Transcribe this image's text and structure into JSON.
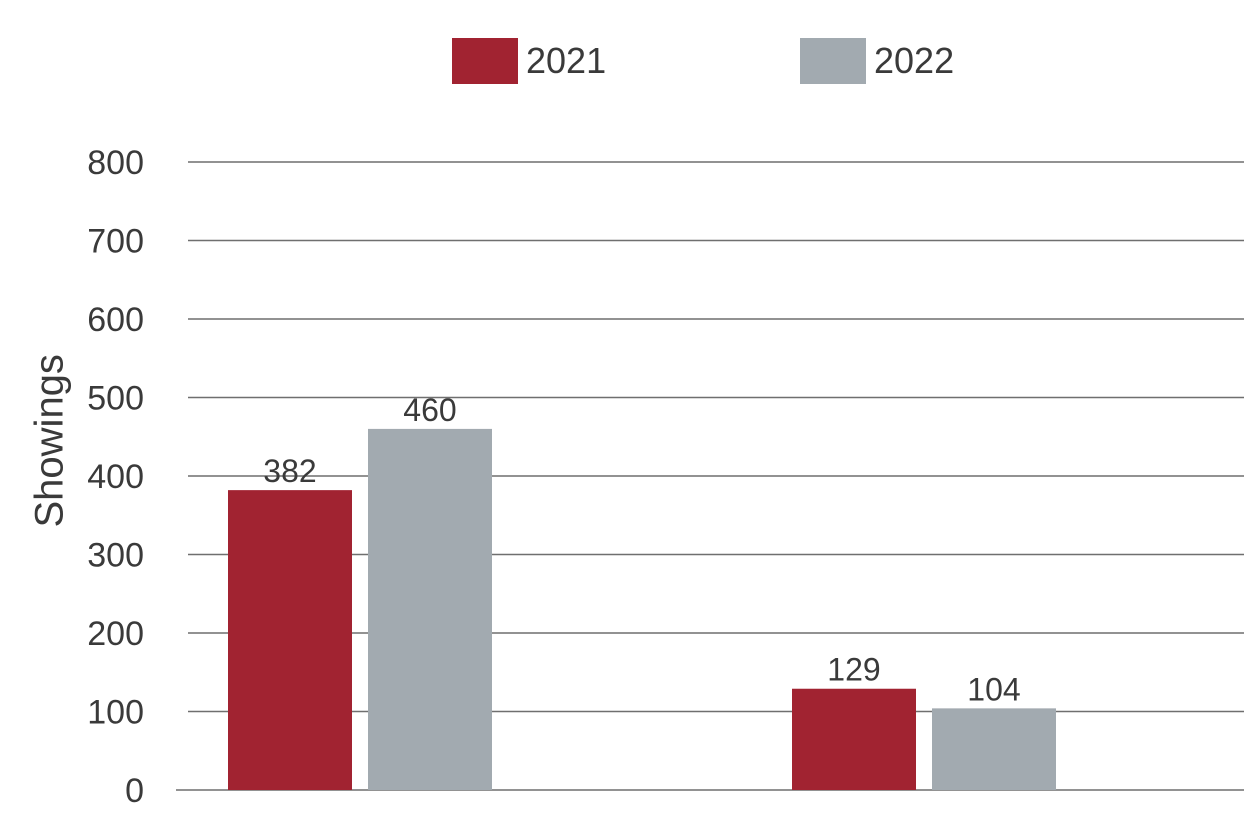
{
  "chart_data": {
    "type": "bar",
    "title": "",
    "xlabel": "",
    "ylabel": "Showings",
    "categories": [
      "",
      ""
    ],
    "series": [
      {
        "name": "2021",
        "values": [
          382,
          129
        ],
        "color": "#A12331"
      },
      {
        "name": "2022",
        "values": [
          460,
          104
        ],
        "color": "#A2AAB0"
      }
    ],
    "ylim": [
      0,
      800
    ],
    "yticks": [
      0,
      100,
      200,
      300,
      400,
      500,
      600,
      700,
      800
    ],
    "grid": true,
    "legend_position": "top"
  },
  "colors": {
    "gridline": "#6f6f6f",
    "text": "#3a3a3a"
  }
}
